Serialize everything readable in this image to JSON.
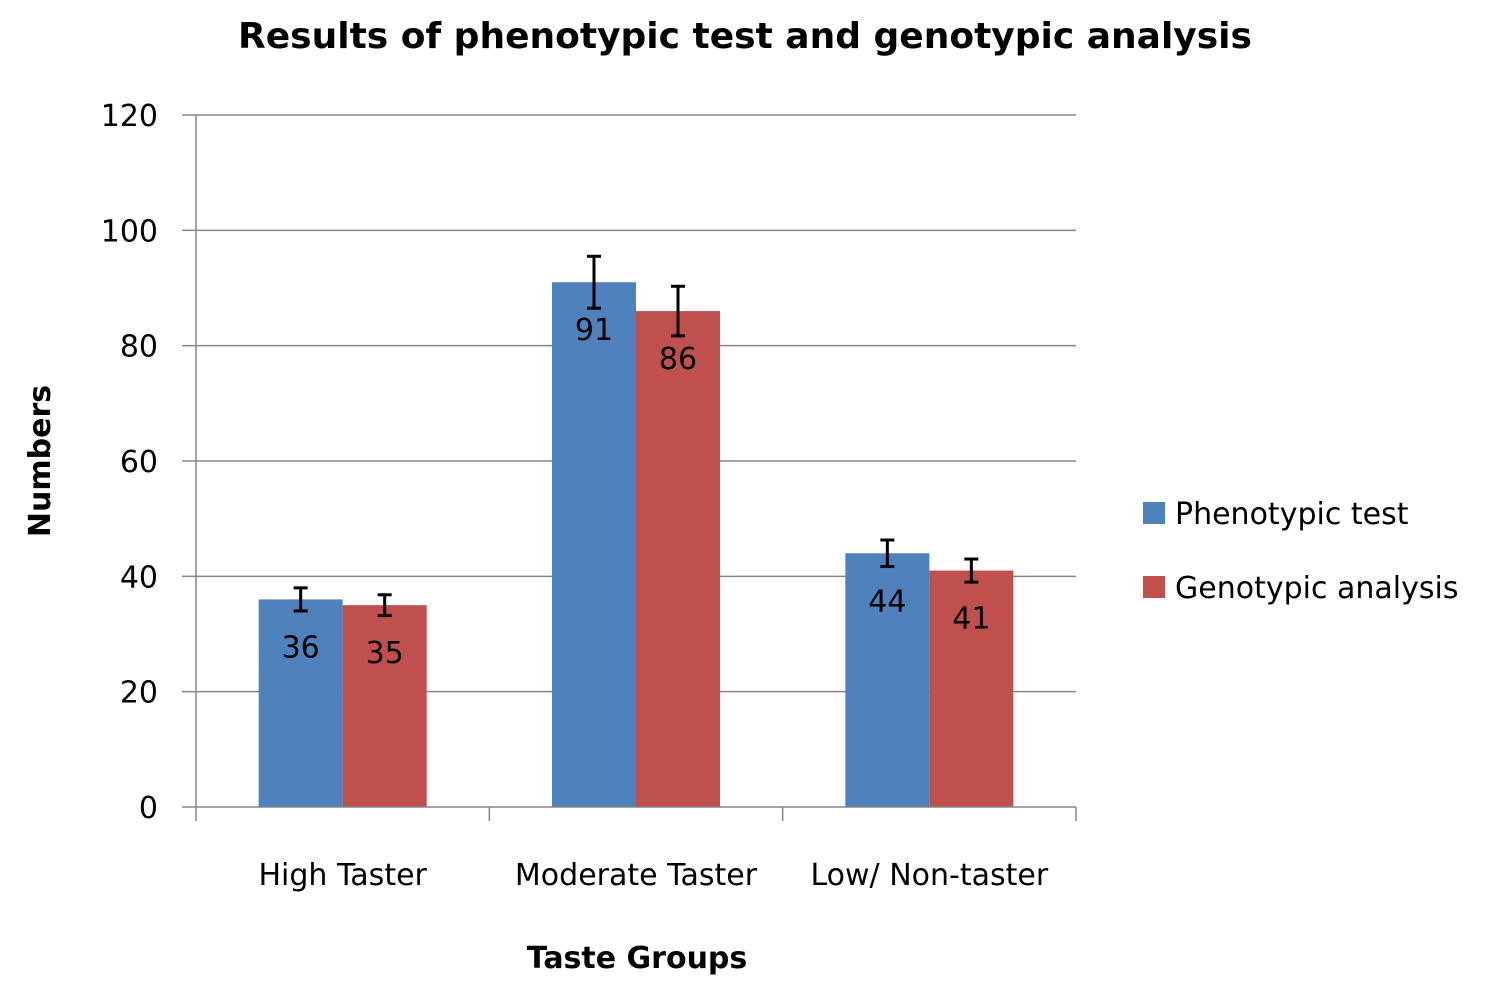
{
  "chart_data": {
    "type": "bar",
    "title": "Results of phenotypic test and genotypic analysis",
    "xlabel": "Taste Groups",
    "ylabel": "Numbers",
    "ylim": [
      0,
      120
    ],
    "yticks": [
      0,
      20,
      40,
      60,
      80,
      100,
      120
    ],
    "grid": true,
    "legend_position": "right",
    "categories": [
      "High Taster",
      "Moderate Taster",
      "Low/ Non-taster"
    ],
    "series": [
      {
        "name": "Phenotypic test",
        "color": "#4F81BD",
        "values": [
          36,
          91,
          44
        ],
        "errors": [
          2,
          4.5,
          2.3
        ]
      },
      {
        "name": "Genotypic analysis",
        "color": "#C0504D",
        "values": [
          35,
          86,
          41
        ],
        "errors": [
          1.8,
          4.3,
          2
        ]
      }
    ],
    "data_labels": true
  }
}
